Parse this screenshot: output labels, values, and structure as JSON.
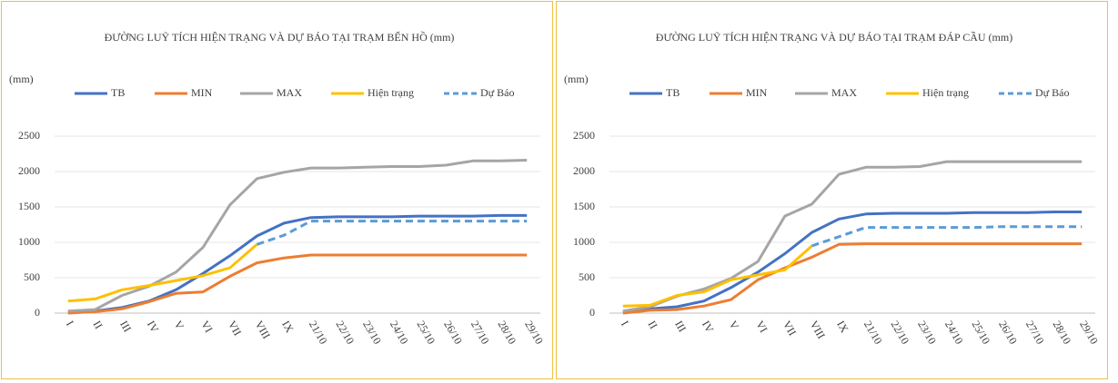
{
  "chart_data": [
    {
      "type": "line",
      "title": "ĐƯỜNG LUỸ TÍCH HIỆN TRẠNG VÀ DỰ BÁO TẠI TRẠM BẾN HỒ (mm)",
      "y_label": "(mm)",
      "categories": [
        "I",
        "II",
        "III",
        "IV",
        "V",
        "VI",
        "VII",
        "VIII",
        "IX",
        "21/10",
        "22/10",
        "23/10",
        "24/10",
        "25/10",
        "26/10",
        "27/10",
        "28/10",
        "29/10"
      ],
      "ylim": [
        0,
        2500
      ],
      "yticks": [
        0,
        500,
        1000,
        1500,
        2000,
        2500
      ],
      "grid": true,
      "legend": "top",
      "series": [
        {
          "name": "TB",
          "color": "#4472c4",
          "values": [
            20,
            30,
            80,
            170,
            330,
            560,
            810,
            1090,
            1270,
            1350,
            1360,
            1360,
            1360,
            1370,
            1370,
            1370,
            1380,
            1380
          ]
        },
        {
          "name": "MIN",
          "color": "#ed7d31",
          "values": [
            0,
            20,
            60,
            160,
            280,
            300,
            520,
            710,
            780,
            820,
            820,
            820,
            820,
            820,
            820,
            820,
            820,
            820
          ]
        },
        {
          "name": "MAX",
          "color": "#a5a5a5",
          "values": [
            30,
            50,
            250,
            380,
            580,
            930,
            1530,
            1900,
            1990,
            2050,
            2050,
            2060,
            2070,
            2070,
            2090,
            2150,
            2150,
            2160
          ]
        },
        {
          "name": "Hiện trạng",
          "color": "#ffc000",
          "values": [
            170,
            200,
            330,
            390,
            460,
            530,
            640,
            970,
            null,
            null,
            null,
            null,
            null,
            null,
            null,
            null,
            null,
            null
          ]
        },
        {
          "name": "Dự Báo",
          "color": "#5b9bd5",
          "dash": true,
          "values": [
            null,
            null,
            null,
            null,
            null,
            null,
            null,
            970,
            1100,
            1300,
            1300,
            1300,
            1300,
            1300,
            1300,
            1300,
            1300,
            1300
          ]
        }
      ]
    },
    {
      "type": "line",
      "title": "ĐƯỜNG LUỸ TÍCH HIỆN TRẠNG VÀ DỰ BÁO TẠI TRẠM ĐÁP CẦU (mm)",
      "y_label": "(mm)",
      "categories": [
        "I",
        "II",
        "III",
        "IV",
        "V",
        "VI",
        "VII",
        "VIII",
        "IX",
        "21/10",
        "22/10",
        "23/10",
        "24/10",
        "25/10",
        "26/10",
        "27/10",
        "28/10",
        "29/10"
      ],
      "ylim": [
        0,
        2500
      ],
      "yticks": [
        0,
        500,
        1000,
        1500,
        2000,
        2500
      ],
      "grid": true,
      "legend": "top",
      "series": [
        {
          "name": "TB",
          "color": "#4472c4",
          "values": [
            20,
            60,
            90,
            170,
            360,
            580,
            840,
            1140,
            1330,
            1400,
            1410,
            1410,
            1410,
            1420,
            1420,
            1420,
            1430,
            1430
          ]
        },
        {
          "name": "MIN",
          "color": "#ed7d31",
          "values": [
            0,
            40,
            50,
            100,
            190,
            470,
            640,
            790,
            970,
            980,
            980,
            980,
            980,
            980,
            980,
            980,
            980,
            980
          ]
        },
        {
          "name": "MAX",
          "color": "#a5a5a5",
          "values": [
            30,
            90,
            240,
            340,
            490,
            730,
            1370,
            1540,
            1960,
            2060,
            2060,
            2070,
            2140,
            2140,
            2140,
            2140,
            2140,
            2140
          ]
        },
        {
          "name": "Hiện trạng",
          "color": "#ffc000",
          "values": [
            100,
            110,
            250,
            300,
            470,
            540,
            610,
            950,
            null,
            null,
            null,
            null,
            null,
            null,
            null,
            null,
            null,
            null
          ]
        },
        {
          "name": "Dự Báo",
          "color": "#5b9bd5",
          "dash": true,
          "values": [
            null,
            null,
            null,
            null,
            null,
            null,
            null,
            950,
            1080,
            1210,
            1210,
            1210,
            1210,
            1210,
            1220,
            1220,
            1220,
            1220
          ]
        }
      ]
    }
  ]
}
